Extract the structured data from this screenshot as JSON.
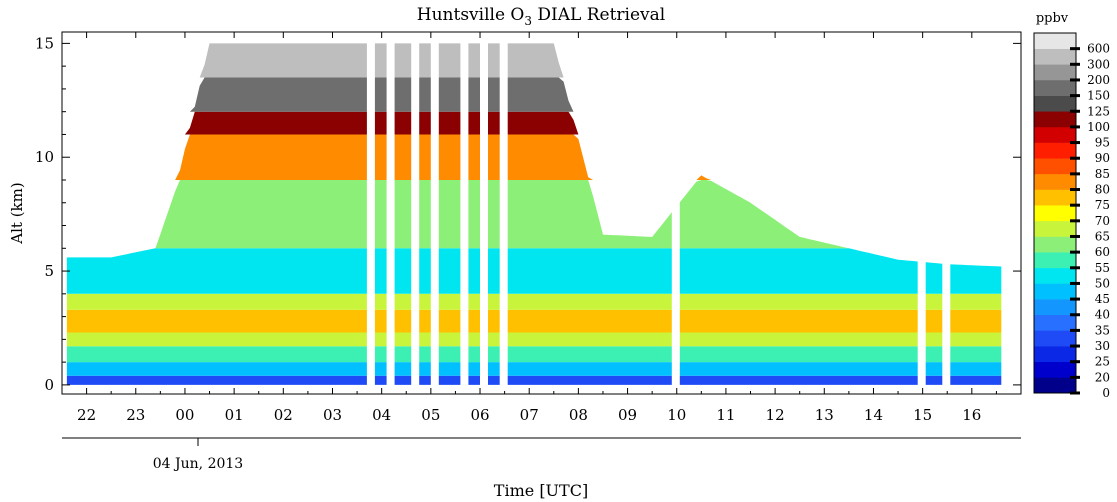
{
  "chart_data": {
    "type": "heatmap",
    "title_main": "Huntsville O",
    "title_sub": "3",
    "title_rest": " DIAL Retrieval",
    "ylabel": "Alt (km)",
    "xlabel": "Time [UTC]",
    "date_label": "04 Jun, 2013",
    "colorbar_unit": "ppbv",
    "ylim": [
      -0.4,
      15.5
    ],
    "y_ticks": [
      "0",
      "5",
      "10",
      "15"
    ],
    "y_tick_values": [
      0,
      5,
      10,
      15
    ],
    "x_tick_labels": [
      "22",
      "23",
      "00",
      "01",
      "02",
      "03",
      "04",
      "05",
      "06",
      "07",
      "08",
      "09",
      "10",
      "11",
      "12",
      "13",
      "14",
      "15",
      "16"
    ],
    "x_start_hour": 21.5,
    "x_end_hour": 41.0,
    "colorbar_levels": [
      "0",
      "20",
      "25",
      "30",
      "35",
      "40",
      "45",
      "50",
      "55",
      "60",
      "65",
      "70",
      "75",
      "80",
      "85",
      "90",
      "95",
      "100",
      "125",
      "150",
      "200",
      "300",
      "600"
    ],
    "colorbar_colors": [
      "#00008b",
      "#0000cd",
      "#0a28e6",
      "#1e4bf5",
      "#2870ff",
      "#1496ff",
      "#00c0ff",
      "#00e6f0",
      "#3cf0b4",
      "#8cf078",
      "#c8f53c",
      "#ffff00",
      "#ffc000",
      "#ff8c00",
      "#ff5000",
      "#ff1e00",
      "#d20000",
      "#8b0000",
      "#4b4b4b",
      "#6e6e6e",
      "#969696",
      "#bebebe",
      "#e6e6e6"
    ],
    "series": [
      {
        "x": [
          21.6,
          22.5,
          23.4,
          23.8,
          24.5,
          25.5,
          26.5,
          27.5,
          28.5,
          29.5,
          30.5,
          31.5,
          32.5,
          33.5,
          34.5,
          35.5,
          36.5,
          37.5,
          38.5,
          39.5,
          40.6
        ],
        "data_top_km": [
          5.6,
          5.6,
          6.0,
          8.5,
          15.0,
          15.0,
          15.0,
          15.0,
          15.0,
          15.0,
          15.0,
          15.0,
          6.6,
          6.5,
          9.2,
          8.0,
          6.5,
          6.0,
          5.5,
          5.3,
          5.2
        ]
      }
    ],
    "layers_km": [
      {
        "y": [
          0.0,
          0.4
        ],
        "ppbv": 30
      },
      {
        "y": [
          0.4,
          1.0
        ],
        "ppbv": 45
      },
      {
        "y": [
          1.0,
          1.7
        ],
        "ppbv": 55
      },
      {
        "y": [
          1.7,
          2.3
        ],
        "ppbv": 65
      },
      {
        "y": [
          2.3,
          3.3
        ],
        "ppbv": 75
      },
      {
        "y": [
          3.3,
          4.0
        ],
        "ppbv": 65
      },
      {
        "y": [
          4.0,
          6.0
        ],
        "ppbv": 50
      },
      {
        "y": [
          6.0,
          9.0
        ],
        "ppbv": 60
      },
      {
        "y": [
          9.0,
          11.0
        ],
        "ppbv": 80
      },
      {
        "y": [
          11.0,
          12.0
        ],
        "ppbv": 100
      },
      {
        "y": [
          12.0,
          13.5
        ],
        "ppbv": 150
      },
      {
        "y": [
          13.5,
          15.0
        ],
        "ppbv": 300
      }
    ],
    "data_gaps_hour": [
      27.7,
      28.1,
      28.6,
      29.0,
      29.6,
      30.0,
      30.4,
      33.9,
      38.9,
      39.4
    ]
  }
}
